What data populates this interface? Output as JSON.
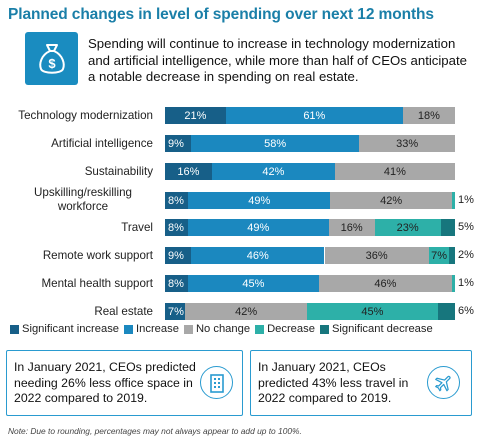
{
  "title": "Planned changes in level of spending over next 12 months",
  "summary": "Spending will continue to increase in technology modernization and artificial intelligence, while more than half of CEOs anticipate a notable decrease in spending on real estate.",
  "summary_icon": "money-bag-dollar-icon",
  "colors": {
    "significant_increase": "#175f88",
    "increase": "#1b88bf",
    "no_change": "#a8a8a8",
    "decrease": "#2db0a8",
    "significant_decrease": "#17767d",
    "title": "#1a7fa8",
    "callout_border": "#2a9bd0"
  },
  "chart_data": {
    "type": "bar",
    "orientation": "horizontal",
    "stacked": true,
    "categories": [
      "Technology modernization",
      "Artificial intelligence",
      "Sustainability",
      "Upskilling/reskilling workforce",
      "Travel",
      "Remote work support",
      "Mental health support",
      "Real estate"
    ],
    "series": [
      {
        "name": "Significant increase",
        "values": [
          21,
          9,
          16,
          8,
          8,
          9,
          8,
          7
        ]
      },
      {
        "name": "Increase",
        "values": [
          61,
          58,
          42,
          49,
          49,
          46,
          45,
          0
        ]
      },
      {
        "name": "No change",
        "values": [
          18,
          33,
          41,
          42,
          16,
          36,
          46,
          42
        ]
      },
      {
        "name": "Decrease",
        "values": [
          0,
          0,
          0,
          1,
          23,
          7,
          1,
          45
        ]
      },
      {
        "name": "Significant decrease",
        "values": [
          0,
          0,
          0,
          0,
          5,
          2,
          0,
          6
        ]
      }
    ],
    "labels": [
      [
        "21%",
        "61%",
        "18%",
        "",
        ""
      ],
      [
        "9%",
        "58%",
        "33%",
        "",
        ""
      ],
      [
        "16%",
        "42%",
        "41%",
        "",
        ""
      ],
      [
        "8%",
        "49%",
        "42%",
        "1%",
        ""
      ],
      [
        "8%",
        "49%",
        "16%",
        "23%",
        "5%"
      ],
      [
        "9%",
        "46%",
        "36%",
        "7%",
        "2%"
      ],
      [
        "8%",
        "45%",
        "46%",
        "1%",
        ""
      ],
      [
        "7%",
        "",
        "42%",
        "45%",
        "6%"
      ]
    ],
    "xlim": [
      0,
      100
    ],
    "legend_position": "bottom",
    "grid": false
  },
  "callouts": [
    {
      "text": "In January 2021, CEOs predicted needing 26% less office space in 2022 compared to 2019.",
      "icon": "office-building-icon"
    },
    {
      "text": "In January 2021, CEOs predicted 43% less travel in 2022 compared to 2019.",
      "icon": "airplane-icon"
    }
  ],
  "note": "Note: Due to rounding, percentages may not always appear to add up to 100%."
}
